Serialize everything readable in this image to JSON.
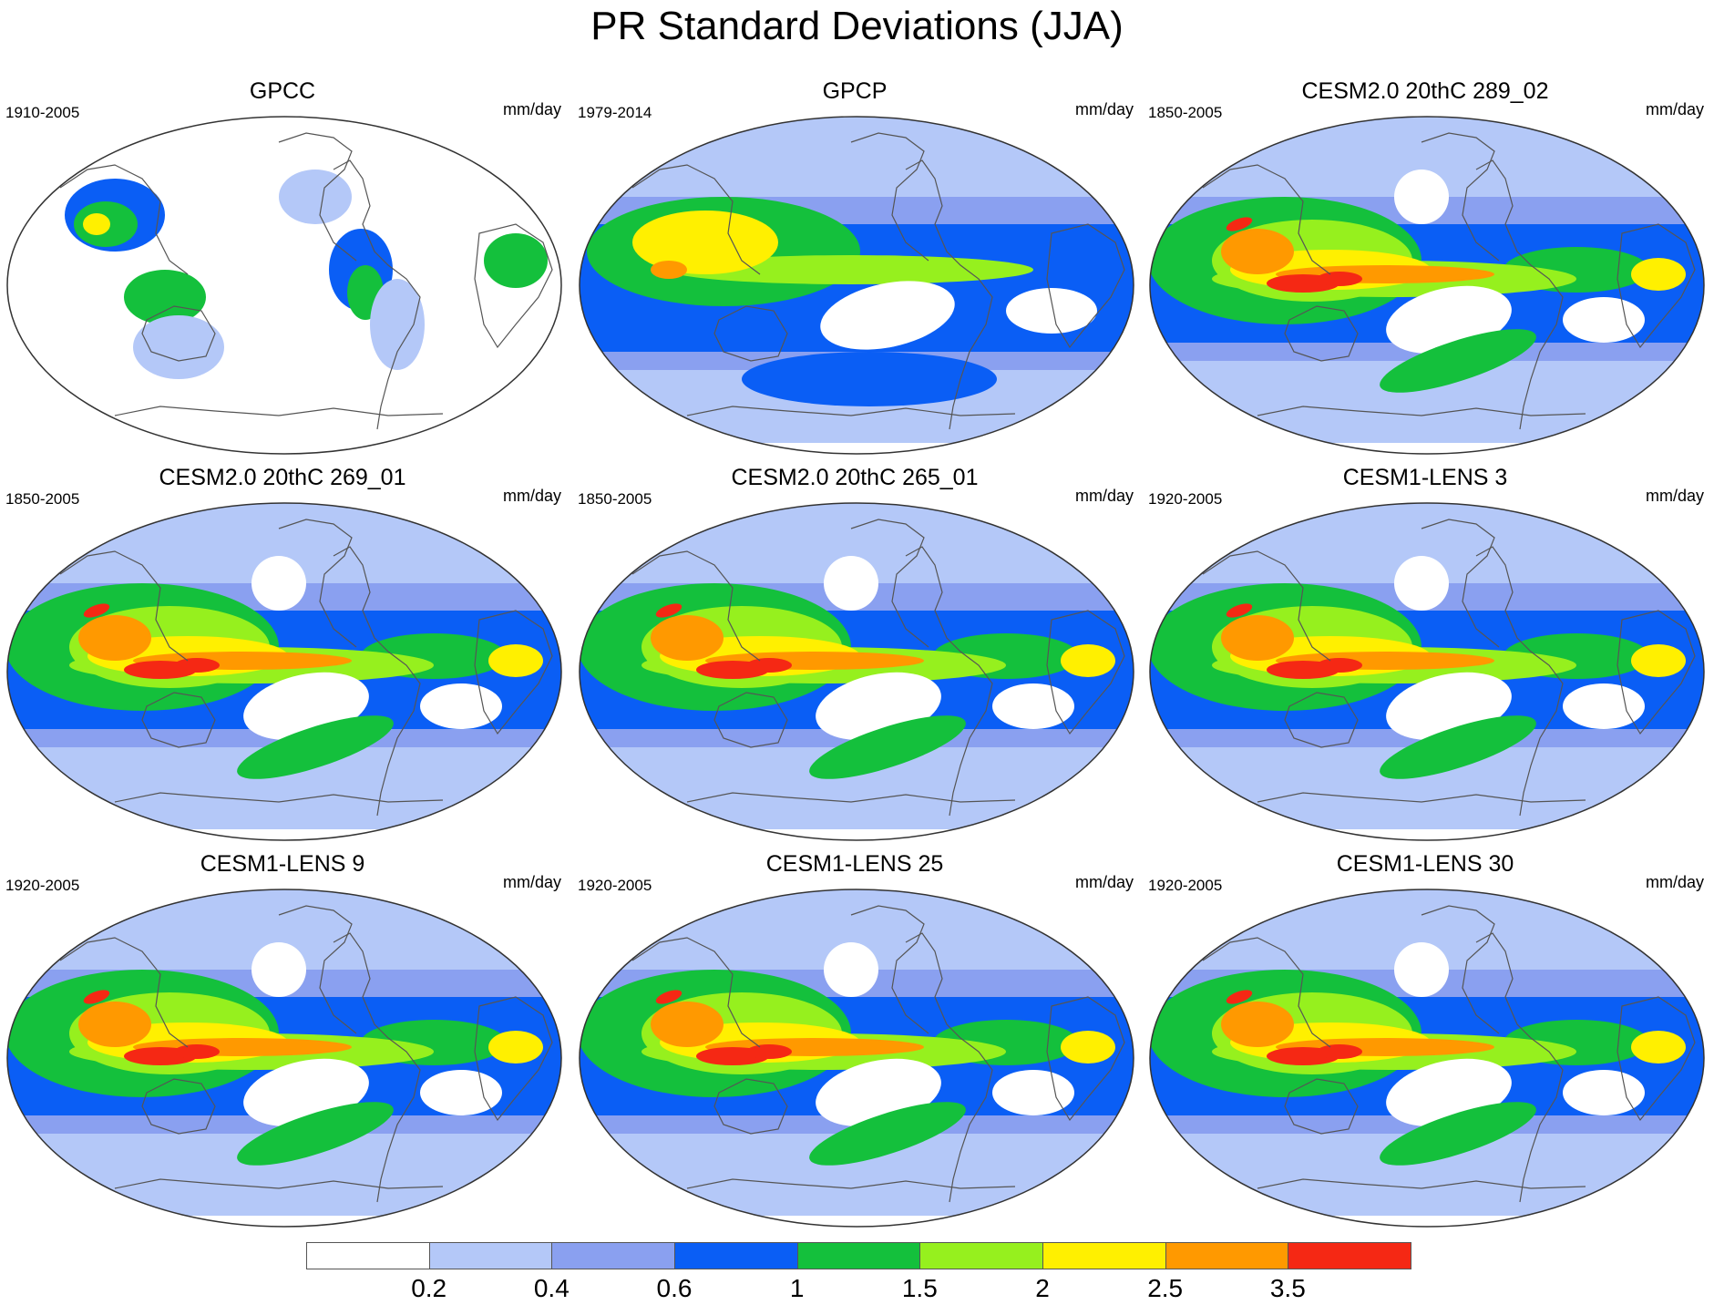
{
  "figure": {
    "title": "PR Standard Deviations (JJA)"
  },
  "panels": [
    {
      "title": "GPCC",
      "period": "1910-2005",
      "units": "mm/day",
      "variant": "obs-land"
    },
    {
      "title": "GPCP",
      "period": "1979-2014",
      "units": "mm/day",
      "variant": "obs"
    },
    {
      "title": "CESM2.0 20thC 289_02",
      "period": "1850-2005",
      "units": "mm/day",
      "variant": "model"
    },
    {
      "title": "CESM2.0 20thC 269_01",
      "period": "1850-2005",
      "units": "mm/day",
      "variant": "model"
    },
    {
      "title": "CESM2.0 20thC 265_01",
      "period": "1850-2005",
      "units": "mm/day",
      "variant": "model"
    },
    {
      "title": "CESM1-LENS 3",
      "period": "1920-2005",
      "units": "mm/day",
      "variant": "model"
    },
    {
      "title": "CESM1-LENS 9",
      "period": "1920-2005",
      "units": "mm/day",
      "variant": "model"
    },
    {
      "title": "CESM1-LENS 25",
      "period": "1920-2005",
      "units": "mm/day",
      "variant": "model"
    },
    {
      "title": "CESM1-LENS 30",
      "period": "1920-2005",
      "units": "mm/day",
      "variant": "model"
    }
  ],
  "colorbar": {
    "labels": [
      "0.2",
      "0.4",
      "0.6",
      "1",
      "1.5",
      "2",
      "2.5",
      "3.5"
    ],
    "colors": [
      "#ffffff",
      "#b4c8f8",
      "#8aa0f0",
      "#0a5ef5",
      "#14c03c",
      "#96f01e",
      "#fff000",
      "#ff9900",
      "#f52814"
    ]
  }
}
